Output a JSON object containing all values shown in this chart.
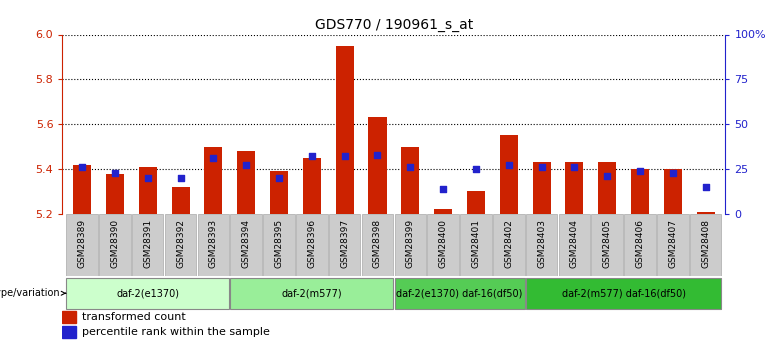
{
  "title": "GDS770 / 190961_s_at",
  "samples": [
    "GSM28389",
    "GSM28390",
    "GSM28391",
    "GSM28392",
    "GSM28393",
    "GSM28394",
    "GSM28395",
    "GSM28396",
    "GSM28397",
    "GSM28398",
    "GSM28399",
    "GSM28400",
    "GSM28401",
    "GSM28402",
    "GSM28403",
    "GSM28404",
    "GSM28405",
    "GSM28406",
    "GSM28407",
    "GSM28408"
  ],
  "transformed_count": [
    5.42,
    5.38,
    5.41,
    5.32,
    5.5,
    5.48,
    5.39,
    5.45,
    5.95,
    5.63,
    5.5,
    5.22,
    5.3,
    5.55,
    5.43,
    5.43,
    5.43,
    5.4,
    5.4,
    5.21
  ],
  "percentile_rank": [
    26,
    23,
    20,
    20,
    31,
    27,
    20,
    32,
    32,
    33,
    26,
    14,
    25,
    27,
    26,
    26,
    21,
    24,
    23,
    15
  ],
  "ylim_left": [
    5.2,
    6.0
  ],
  "ylim_right": [
    0,
    100
  ],
  "yticks_left": [
    5.2,
    5.4,
    5.6,
    5.8,
    6.0
  ],
  "yticks_right": [
    0,
    25,
    50,
    75,
    100
  ],
  "ytick_labels_right": [
    "0",
    "25",
    "50",
    "75",
    "100%"
  ],
  "bar_color": "#cc2200",
  "dot_color": "#2222cc",
  "groups": [
    {
      "label": "daf-2(e1370)",
      "start": 0,
      "end": 5,
      "color": "#ccffcc"
    },
    {
      "label": "daf-2(m577)",
      "start": 5,
      "end": 10,
      "color": "#99ee99"
    },
    {
      "label": "daf-2(e1370) daf-16(df50)",
      "start": 10,
      "end": 14,
      "color": "#55cc55"
    },
    {
      "label": "daf-2(m577) daf-16(df50)",
      "start": 14,
      "end": 20,
      "color": "#33bb33"
    }
  ],
  "legend_bar_label": "transformed count",
  "legend_dot_label": "percentile rank within the sample",
  "genotype_label": "genotype/variation",
  "background_color": "#ffffff",
  "grid_color": "#000000",
  "axis_color_left": "#cc2200",
  "axis_color_right": "#2222cc",
  "sample_bg_color": "#cccccc",
  "xticklabel_fontsize": 7,
  "bar_width": 0.55
}
